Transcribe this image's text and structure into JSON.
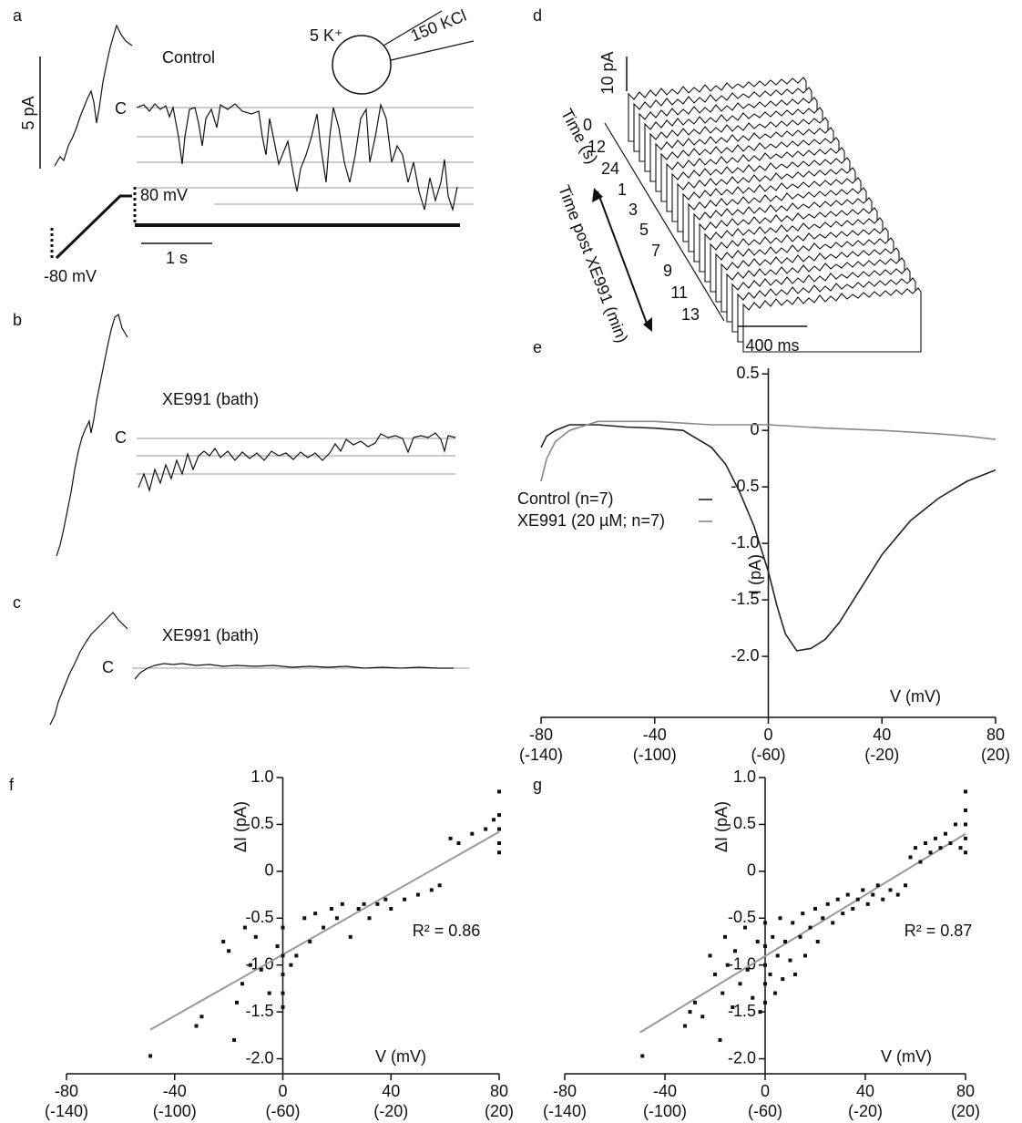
{
  "figure": {
    "panel_a": {
      "label": "a",
      "condition": "Control",
      "current_scale": "5 pA",
      "closed_label": "C",
      "voltage_hold": "80 mV",
      "voltage_start": "-80 mV",
      "time_scale": "1 s",
      "bath": "5 K⁺",
      "pipette": "150 KCl"
    },
    "panel_b": {
      "label": "b",
      "condition": "XE991 (bath)",
      "closed_label": "C"
    },
    "panel_c": {
      "label": "c",
      "condition": "XE991 (bath)",
      "closed_label": "C"
    },
    "panel_d": {
      "label": "d",
      "current_scale": "10 pA",
      "time_axis": "Time (s)",
      "time_ticks": [
        0,
        12,
        24
      ],
      "post_axis": "Time post XE991 (min)",
      "post_ticks": [
        1,
        3,
        5,
        7,
        9,
        11,
        13
      ],
      "time_scale": "400 ms"
    }
  },
  "chart_data": [
    {
      "type": "line",
      "panel_label": "e",
      "x_label": "V (mV)",
      "y_label": "I (pA)",
      "xlim": [
        -80,
        80
      ],
      "ylim": [
        -2.54,
        0.55
      ],
      "xticks": [
        -80,
        -40,
        0,
        40,
        80
      ],
      "xtick_sublabels": [
        "(-140)",
        "(-100)",
        "(-60)",
        "(-20)",
        "(20)"
      ],
      "yticks": [
        0.5,
        0,
        -0.5,
        {
          "value": -1,
          "label": "-1.0"
        },
        -1.5,
        {
          "value": -2,
          "label": "-2.0"
        }
      ],
      "series": [
        {
          "name": "Control (n=7)",
          "color": "#222222",
          "x": [
            -80,
            -78,
            -75,
            -70,
            -60,
            -50,
            -40,
            -30,
            -20,
            -15,
            -10,
            -5,
            0,
            3,
            6,
            10,
            15,
            20,
            25,
            30,
            40,
            50,
            60,
            70,
            80
          ],
          "values": [
            -0.15,
            -0.05,
            0,
            0.05,
            0.05,
            0.03,
            0.02,
            0,
            -0.15,
            -0.3,
            -0.55,
            -0.85,
            -1.25,
            -1.55,
            -1.8,
            -1.95,
            -1.93,
            -1.85,
            -1.7,
            -1.5,
            -1.1,
            -0.8,
            -0.6,
            -0.45,
            -0.35
          ]
        },
        {
          "name": "XE991 (20 µM; n=7)",
          "color": "#888888",
          "x": [
            -80,
            -78,
            -75,
            -70,
            -60,
            -40,
            -20,
            0,
            20,
            40,
            60,
            70,
            80
          ],
          "values": [
            -0.45,
            -0.25,
            -0.1,
            0,
            0.08,
            0.08,
            0.05,
            0.05,
            0.02,
            0,
            -0.03,
            -0.05,
            -0.08
          ]
        }
      ]
    },
    {
      "type": "scatter",
      "panel_label": "f",
      "x_label": "V (mV)",
      "y_label": "ΔI (pA)",
      "annotation": "R² = 0.86",
      "xlim": [
        -80,
        80
      ],
      "ylim": [
        -2.16,
        1.0
      ],
      "xticks": [
        -80,
        -40,
        0,
        40,
        80
      ],
      "xtick_sublabels": [
        "(-140)",
        "(-100)",
        "(-60)",
        "(-20)",
        "(20)"
      ],
      "yticks": [
        {
          "value": 1,
          "label": "1.0"
        },
        0.5,
        0,
        -0.5,
        {
          "value": -1,
          "label": "-1.0"
        },
        -1.5,
        {
          "value": -2,
          "label": "-2.0"
        }
      ],
      "color": "#111111",
      "points": {
        "x": [
          -49,
          -32,
          -30,
          -22,
          -20,
          -18,
          -17,
          -15,
          -14,
          -12,
          -10,
          -8,
          -5,
          -2,
          0,
          0,
          0,
          0,
          0,
          3,
          5,
          8,
          10,
          12,
          15,
          18,
          20,
          22,
          25,
          28,
          30,
          32,
          35,
          38,
          40,
          45,
          50,
          55,
          58,
          62,
          65,
          70,
          75,
          78,
          80,
          80,
          80,
          80,
          80
        ],
        "y": [
          -1.97,
          -1.65,
          -1.55,
          -0.75,
          -0.85,
          -1.8,
          -1.4,
          -1.2,
          -0.6,
          -1.0,
          -0.7,
          -1.05,
          -1.3,
          -0.8,
          -0.6,
          -0.9,
          -1.1,
          -1.3,
          -1.45,
          -1.0,
          -0.9,
          -0.5,
          -0.75,
          -0.45,
          -0.6,
          -0.4,
          -0.5,
          -0.35,
          -0.7,
          -0.4,
          -0.35,
          -0.5,
          -0.35,
          -0.3,
          -0.4,
          -0.3,
          -0.25,
          -0.2,
          -0.15,
          0.35,
          0.3,
          0.4,
          0.45,
          0.55,
          0.3,
          0.45,
          0.6,
          0.85,
          0.2
        ]
      },
      "fit": {
        "color": "#999999",
        "x": [
          -49,
          80
        ],
        "y": [
          -1.69,
          0.42
        ]
      }
    },
    {
      "type": "scatter",
      "panel_label": "g",
      "x_label": "V (mV)",
      "y_label": "ΔI (pA)",
      "annotation": "R² = 0.87",
      "xlim": [
        -80,
        80
      ],
      "ylim": [
        -2.16,
        1.0
      ],
      "xticks": [
        -80,
        -40,
        0,
        40,
        80
      ],
      "xtick_sublabels": [
        "(-140)",
        "(-100)",
        "(-60)",
        "(-20)",
        "(20)"
      ],
      "yticks": [
        {
          "value": 1,
          "label": "1.0"
        },
        0.5,
        0,
        -0.5,
        {
          "value": -1,
          "label": "-1.0"
        },
        -1.5,
        {
          "value": -2,
          "label": "-2.0"
        }
      ],
      "color": "#111111",
      "points": {
        "x": [
          -49,
          -32,
          -30,
          -28,
          -25,
          -22,
          -20,
          -18,
          -17,
          -16,
          -15,
          -13,
          -12,
          -10,
          -8,
          -7,
          -5,
          -3,
          -2,
          0,
          0,
          0,
          0,
          0,
          2,
          3,
          4,
          5,
          6,
          7,
          8,
          10,
          11,
          12,
          14,
          15,
          16,
          18,
          20,
          21,
          23,
          25,
          27,
          29,
          31,
          33,
          35,
          37,
          39,
          41,
          43,
          45,
          47,
          50,
          53,
          56,
          58,
          60,
          62,
          64,
          66,
          68,
          70,
          72,
          74,
          76,
          78,
          80,
          80,
          80,
          80,
          80
        ],
        "y": [
          -1.97,
          -1.65,
          -1.5,
          -1.4,
          -1.55,
          -0.9,
          -1.1,
          -1.8,
          -1.3,
          -0.7,
          -1.0,
          -1.45,
          -0.85,
          -1.2,
          -0.6,
          -1.05,
          -1.35,
          -0.75,
          -1.5,
          -0.55,
          -0.8,
          -1.0,
          -1.2,
          -1.4,
          -1.1,
          -0.7,
          -1.3,
          -0.9,
          -0.5,
          -1.15,
          -0.75,
          -0.95,
          -0.55,
          -1.1,
          -0.7,
          -0.45,
          -0.9,
          -0.6,
          -0.4,
          -0.75,
          -0.5,
          -0.35,
          -0.55,
          -0.3,
          -0.45,
          -0.25,
          -0.4,
          -0.3,
          -0.2,
          -0.35,
          -0.25,
          -0.15,
          -0.3,
          -0.2,
          -0.25,
          -0.15,
          0.15,
          0.25,
          0.1,
          0.3,
          0.2,
          0.35,
          0.25,
          0.4,
          0.3,
          0.5,
          0.25,
          0.2,
          0.35,
          0.5,
          0.65,
          0.85
        ]
      },
      "fit": {
        "color": "#999999",
        "x": [
          -50,
          80
        ],
        "y": [
          -1.72,
          0.4
        ]
      }
    }
  ]
}
